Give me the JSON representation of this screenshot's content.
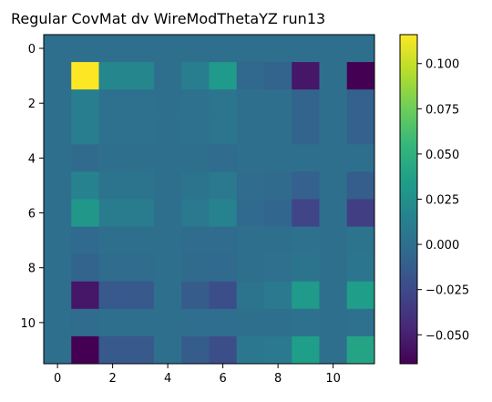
{
  "chart_data": {
    "type": "heatmap",
    "title": "Regular CovMat dv WireModThetaYZ run13",
    "xlabel": "",
    "ylabel": "",
    "rows": 12,
    "cols": 12,
    "x_ticks": [
      0,
      2,
      4,
      6,
      8,
      10
    ],
    "y_ticks": [
      0,
      2,
      4,
      6,
      8,
      10
    ],
    "colormap": "viridis",
    "vmin": -0.066,
    "vmax": 0.116,
    "colorbar_ticks": [
      0.1,
      0.075,
      0.05,
      0.025,
      0.0,
      -0.025,
      -0.05
    ],
    "colorbar_tick_labels": [
      "0.100",
      "0.075",
      "0.050",
      "0.025",
      "0.000",
      "−0.025",
      "−0.050"
    ],
    "matrix": [
      [
        0.0,
        0.0,
        0.0,
        0.0,
        0.0,
        0.0,
        0.0,
        0.0,
        0.0,
        0.0,
        0.0,
        0.0
      ],
      [
        0.0,
        0.116,
        0.018,
        0.018,
        0.0,
        0.012,
        0.032,
        -0.005,
        -0.008,
        -0.055,
        0.0,
        -0.066
      ],
      [
        0.0,
        0.012,
        0.002,
        0.002,
        0.0,
        0.002,
        0.005,
        0.0,
        0.0,
        -0.008,
        0.0,
        -0.01
      ],
      [
        0.0,
        0.012,
        0.002,
        0.002,
        0.0,
        0.002,
        0.005,
        0.0,
        0.0,
        -0.008,
        0.0,
        -0.01
      ],
      [
        0.0,
        -0.003,
        0.0,
        0.0,
        0.0,
        0.0,
        -0.002,
        0.0,
        0.0,
        0.0,
        0.0,
        0.0
      ],
      [
        0.0,
        0.015,
        0.004,
        0.004,
        0.0,
        0.003,
        0.008,
        -0.002,
        -0.003,
        -0.01,
        0.0,
        -0.012
      ],
      [
        0.0,
        0.03,
        0.01,
        0.01,
        0.0,
        0.008,
        0.015,
        -0.004,
        -0.006,
        -0.028,
        0.0,
        -0.032
      ],
      [
        0.0,
        -0.004,
        0.0,
        0.0,
        0.0,
        -0.002,
        -0.002,
        0.0,
        0.0,
        0.002,
        0.0,
        0.003
      ],
      [
        0.0,
        -0.008,
        -0.002,
        -0.002,
        0.0,
        -0.003,
        -0.004,
        0.0,
        0.001,
        0.004,
        0.0,
        0.005
      ],
      [
        0.0,
        -0.055,
        -0.015,
        -0.015,
        0.0,
        -0.013,
        -0.022,
        0.004,
        0.008,
        0.032,
        0.0,
        0.035
      ],
      [
        0.0,
        -0.002,
        0.0,
        0.0,
        0.0,
        -0.001,
        -0.001,
        0.0,
        0.0,
        0.002,
        0.0,
        0.002
      ],
      [
        0.0,
        -0.066,
        -0.015,
        -0.015,
        0.0,
        -0.013,
        -0.022,
        0.006,
        0.008,
        0.035,
        0.0,
        0.04
      ]
    ]
  }
}
